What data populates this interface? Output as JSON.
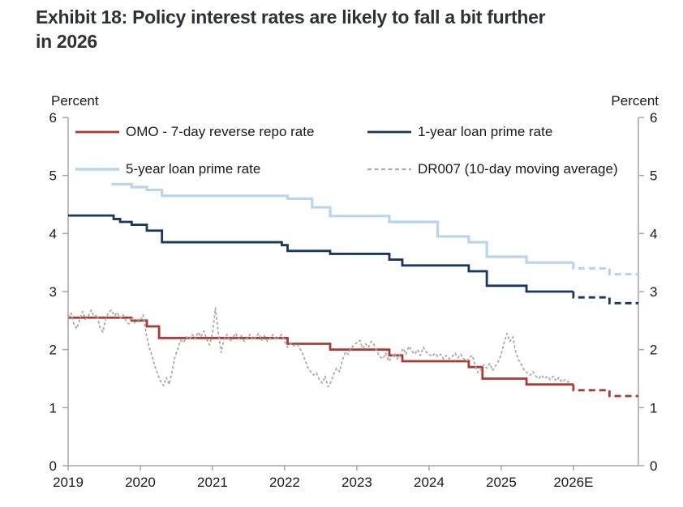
{
  "title": {
    "line1": "Exhibit 18: Policy interest rates are likely to fall a bit further",
    "line2": "in 2026"
  },
  "chart_data": {
    "type": "line",
    "title": "Exhibit 18: Policy interest rates are likely to fall a bit further in 2026",
    "ylabel_left": "Percent",
    "ylabel_right": "Percent",
    "x_range": [
      2019.0,
      2026.9
    ],
    "y_range": [
      0,
      6
    ],
    "grid": false,
    "legend_position": "top-inside",
    "y_ticks": [
      0,
      1,
      2,
      3,
      4,
      5,
      6
    ],
    "x_ticks": [
      {
        "t": 2019,
        "label": "2019"
      },
      {
        "t": 2020,
        "label": "2020"
      },
      {
        "t": 2021,
        "label": "2021"
      },
      {
        "t": 2022,
        "label": "2022"
      },
      {
        "t": 2023,
        "label": "2023"
      },
      {
        "t": 2024,
        "label": "2024"
      },
      {
        "t": 2025,
        "label": "2025"
      },
      {
        "t": 2026,
        "label": "2026E"
      }
    ],
    "colors": {
      "omo": "#a93b33",
      "lpr1y": "#17375e",
      "lpr5y": "#b7d5ed",
      "dr007": "#ababab",
      "axis": "#a6a6a6"
    },
    "series": [
      {
        "name": "1-year loan prime rate",
        "color": "#17375e",
        "type": "step",
        "width": 2.8,
        "points": [
          [
            2019.0,
            4.31
          ],
          [
            2019.63,
            4.25
          ],
          [
            2019.72,
            4.2
          ],
          [
            2019.88,
            4.15
          ],
          [
            2020.09,
            4.05
          ],
          [
            2020.3,
            3.85
          ],
          [
            2021.96,
            3.8
          ],
          [
            2022.04,
            3.7
          ],
          [
            2022.63,
            3.65
          ],
          [
            2023.45,
            3.55
          ],
          [
            2023.63,
            3.45
          ],
          [
            2024.55,
            3.35
          ],
          [
            2024.8,
            3.1
          ],
          [
            2025.35,
            3.0
          ]
        ],
        "forecast": [
          [
            2026.0,
            2.9
          ],
          [
            2026.5,
            2.8
          ]
        ]
      },
      {
        "name": "5-year loan prime rate",
        "color": "#b7d5ed",
        "type": "step",
        "width": 3.2,
        "points": [
          [
            2019.6,
            4.85
          ],
          [
            2019.88,
            4.8
          ],
          [
            2020.09,
            4.75
          ],
          [
            2020.3,
            4.65
          ],
          [
            2022.04,
            4.6
          ],
          [
            2022.38,
            4.45
          ],
          [
            2022.63,
            4.3
          ],
          [
            2023.45,
            4.2
          ],
          [
            2024.12,
            3.95
          ],
          [
            2024.55,
            3.85
          ],
          [
            2024.8,
            3.6
          ],
          [
            2025.35,
            3.5
          ]
        ],
        "forecast": [
          [
            2026.0,
            3.4
          ],
          [
            2026.5,
            3.3
          ]
        ]
      },
      {
        "name": "OMO - 7-day reverse repo rate",
        "color": "#a93b33",
        "type": "step",
        "width": 2.8,
        "points": [
          [
            2019.0,
            2.55
          ],
          [
            2019.88,
            2.5
          ],
          [
            2020.09,
            2.4
          ],
          [
            2020.26,
            2.2
          ],
          [
            2022.04,
            2.1
          ],
          [
            2022.63,
            2.0
          ],
          [
            2023.45,
            1.9
          ],
          [
            2023.63,
            1.8
          ],
          [
            2024.55,
            1.7
          ],
          [
            2024.74,
            1.5
          ],
          [
            2025.35,
            1.4
          ]
        ],
        "forecast": [
          [
            2026.0,
            1.3
          ],
          [
            2026.5,
            1.2
          ]
        ]
      },
      {
        "name": "DR007 (10-day moving average)",
        "color": "#ababab",
        "type": "line",
        "dash": "3.5 2.5",
        "width": 1.8,
        "points": [
          [
            2019.0,
            2.55
          ],
          [
            2019.04,
            2.63
          ],
          [
            2019.08,
            2.44
          ],
          [
            2019.12,
            2.36
          ],
          [
            2019.16,
            2.52
          ],
          [
            2019.2,
            2.66
          ],
          [
            2019.24,
            2.52
          ],
          [
            2019.28,
            2.58
          ],
          [
            2019.32,
            2.68
          ],
          [
            2019.36,
            2.56
          ],
          [
            2019.4,
            2.6
          ],
          [
            2019.44,
            2.38
          ],
          [
            2019.48,
            2.3
          ],
          [
            2019.52,
            2.52
          ],
          [
            2019.56,
            2.64
          ],
          [
            2019.6,
            2.68
          ],
          [
            2019.64,
            2.58
          ],
          [
            2019.68,
            2.64
          ],
          [
            2019.72,
            2.54
          ],
          [
            2019.76,
            2.6
          ],
          [
            2019.8,
            2.5
          ],
          [
            2019.84,
            2.44
          ],
          [
            2019.88,
            2.56
          ],
          [
            2019.92,
            2.46
          ],
          [
            2019.96,
            2.52
          ],
          [
            2020.0,
            2.5
          ],
          [
            2020.04,
            2.6
          ],
          [
            2020.08,
            2.28
          ],
          [
            2020.12,
            2.05
          ],
          [
            2020.16,
            1.9
          ],
          [
            2020.2,
            1.72
          ],
          [
            2020.24,
            1.58
          ],
          [
            2020.28,
            1.46
          ],
          [
            2020.32,
            1.38
          ],
          [
            2020.36,
            1.52
          ],
          [
            2020.4,
            1.4
          ],
          [
            2020.44,
            1.62
          ],
          [
            2020.48,
            1.88
          ],
          [
            2020.52,
            2.02
          ],
          [
            2020.56,
            2.16
          ],
          [
            2020.6,
            2.12
          ],
          [
            2020.64,
            2.22
          ],
          [
            2020.68,
            2.18
          ],
          [
            2020.72,
            2.26
          ],
          [
            2020.76,
            2.18
          ],
          [
            2020.8,
            2.3
          ],
          [
            2020.84,
            2.22
          ],
          [
            2020.88,
            2.32
          ],
          [
            2020.92,
            2.18
          ],
          [
            2020.96,
            2.08
          ],
          [
            2021.0,
            2.28
          ],
          [
            2021.04,
            2.72
          ],
          [
            2021.08,
            2.3
          ],
          [
            2021.12,
            1.95
          ],
          [
            2021.16,
            2.18
          ],
          [
            2021.2,
            2.26
          ],
          [
            2021.24,
            2.14
          ],
          [
            2021.28,
            2.2
          ],
          [
            2021.32,
            2.28
          ],
          [
            2021.36,
            2.18
          ],
          [
            2021.4,
            2.24
          ],
          [
            2021.44,
            2.14
          ],
          [
            2021.48,
            2.2
          ],
          [
            2021.52,
            2.26
          ],
          [
            2021.56,
            2.16
          ],
          [
            2021.6,
            2.22
          ],
          [
            2021.64,
            2.28
          ],
          [
            2021.68,
            2.16
          ],
          [
            2021.72,
            2.24
          ],
          [
            2021.76,
            2.14
          ],
          [
            2021.8,
            2.2
          ],
          [
            2021.84,
            2.26
          ],
          [
            2021.88,
            2.16
          ],
          [
            2021.92,
            2.22
          ],
          [
            2021.96,
            2.26
          ],
          [
            2022.0,
            2.14
          ],
          [
            2022.04,
            2.04
          ],
          [
            2022.08,
            2.1
          ],
          [
            2022.12,
            2.06
          ],
          [
            2022.16,
            2.1
          ],
          [
            2022.2,
            2.04
          ],
          [
            2022.24,
            1.96
          ],
          [
            2022.28,
            1.82
          ],
          [
            2022.32,
            1.7
          ],
          [
            2022.36,
            1.62
          ],
          [
            2022.4,
            1.56
          ],
          [
            2022.44,
            1.6
          ],
          [
            2022.48,
            1.48
          ],
          [
            2022.52,
            1.42
          ],
          [
            2022.56,
            1.54
          ],
          [
            2022.6,
            1.36
          ],
          [
            2022.64,
            1.44
          ],
          [
            2022.68,
            1.58
          ],
          [
            2022.72,
            1.68
          ],
          [
            2022.76,
            1.62
          ],
          [
            2022.8,
            1.82
          ],
          [
            2022.84,
            1.96
          ],
          [
            2022.88,
            1.92
          ],
          [
            2022.92,
            2.02
          ],
          [
            2022.96,
            2.08
          ],
          [
            2023.0,
            2.12
          ],
          [
            2023.04,
            2.16
          ],
          [
            2023.08,
            2.02
          ],
          [
            2023.12,
            2.1
          ],
          [
            2023.16,
            2.04
          ],
          [
            2023.2,
            2.14
          ],
          [
            2023.24,
            2.08
          ],
          [
            2023.28,
            1.96
          ],
          [
            2023.32,
            1.88
          ],
          [
            2023.36,
            1.84
          ],
          [
            2023.4,
            1.94
          ],
          [
            2023.44,
            1.8
          ],
          [
            2023.48,
            1.86
          ],
          [
            2023.52,
            1.94
          ],
          [
            2023.56,
            1.84
          ],
          [
            2023.6,
            1.92
          ],
          [
            2023.64,
            2.02
          ],
          [
            2023.68,
            1.92
          ],
          [
            2023.72,
            2.06
          ],
          [
            2023.76,
            1.98
          ],
          [
            2023.8,
            1.92
          ],
          [
            2023.84,
            2.0
          ],
          [
            2023.88,
            1.9
          ],
          [
            2023.92,
            2.04
          ],
          [
            2023.96,
            1.96
          ],
          [
            2024.0,
            1.92
          ],
          [
            2024.04,
            1.88
          ],
          [
            2024.08,
            1.94
          ],
          [
            2024.12,
            1.88
          ],
          [
            2024.16,
            1.92
          ],
          [
            2024.2,
            1.84
          ],
          [
            2024.24,
            1.9
          ],
          [
            2024.28,
            1.84
          ],
          [
            2024.32,
            1.88
          ],
          [
            2024.36,
            1.94
          ],
          [
            2024.4,
            1.86
          ],
          [
            2024.44,
            1.92
          ],
          [
            2024.48,
            1.84
          ],
          [
            2024.52,
            1.8
          ],
          [
            2024.56,
            1.86
          ],
          [
            2024.6,
            1.9
          ],
          [
            2024.64,
            1.72
          ],
          [
            2024.68,
            1.6
          ],
          [
            2024.72,
            1.66
          ],
          [
            2024.76,
            1.74
          ],
          [
            2024.8,
            1.68
          ],
          [
            2024.84,
            1.76
          ],
          [
            2024.88,
            1.64
          ],
          [
            2024.92,
            1.72
          ],
          [
            2024.96,
            1.8
          ],
          [
            2025.0,
            1.92
          ],
          [
            2025.04,
            2.12
          ],
          [
            2025.08,
            2.28
          ],
          [
            2025.12,
            2.14
          ],
          [
            2025.16,
            2.22
          ],
          [
            2025.2,
            1.96
          ],
          [
            2025.24,
            1.82
          ],
          [
            2025.28,
            1.74
          ],
          [
            2025.32,
            1.64
          ],
          [
            2025.36,
            1.6
          ],
          [
            2025.4,
            1.56
          ],
          [
            2025.44,
            1.62
          ],
          [
            2025.48,
            1.54
          ],
          [
            2025.52,
            1.5
          ],
          [
            2025.56,
            1.56
          ],
          [
            2025.6,
            1.5
          ],
          [
            2025.64,
            1.54
          ],
          [
            2025.68,
            1.48
          ],
          [
            2025.72,
            1.54
          ],
          [
            2025.76,
            1.46
          ],
          [
            2025.8,
            1.52
          ],
          [
            2025.84,
            1.44
          ],
          [
            2025.88,
            1.48
          ],
          [
            2025.92,
            1.44
          ],
          [
            2025.96,
            1.46
          ]
        ]
      }
    ]
  }
}
